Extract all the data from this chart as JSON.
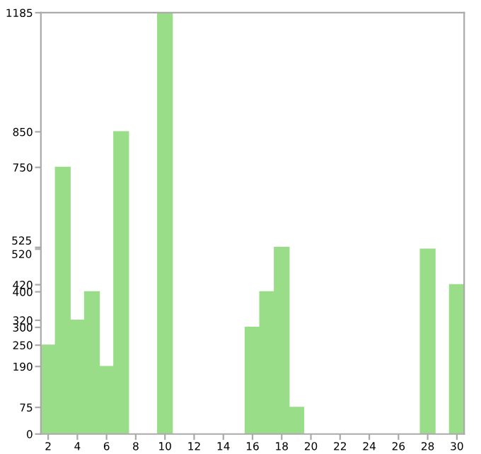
{
  "chart_data": {
    "type": "bar",
    "x": [
      2,
      3,
      4,
      5,
      6,
      7,
      8,
      9,
      10,
      11,
      12,
      13,
      14,
      15,
      16,
      17,
      18,
      19,
      20,
      21,
      22,
      23,
      24,
      25,
      26,
      27,
      28,
      29,
      30
    ],
    "values": [
      250,
      750,
      320,
      400,
      190,
      850,
      0,
      0,
      1185,
      0,
      0,
      0,
      0,
      0,
      300,
      400,
      525,
      75,
      0,
      0,
      0,
      0,
      0,
      0,
      0,
      0,
      520,
      0,
      420
    ],
    "color": "#99dd88",
    "xlim": [
      1.5,
      30.5
    ],
    "xticks": [
      2,
      4,
      6,
      8,
      10,
      12,
      14,
      16,
      18,
      20,
      22,
      24,
      26,
      28,
      30
    ],
    "ylim": [
      0,
      1185
    ],
    "yticks": [
      0,
      75,
      190,
      250,
      300,
      320,
      400,
      420,
      520,
      525,
      750,
      850,
      1185
    ],
    "grid": false
  }
}
